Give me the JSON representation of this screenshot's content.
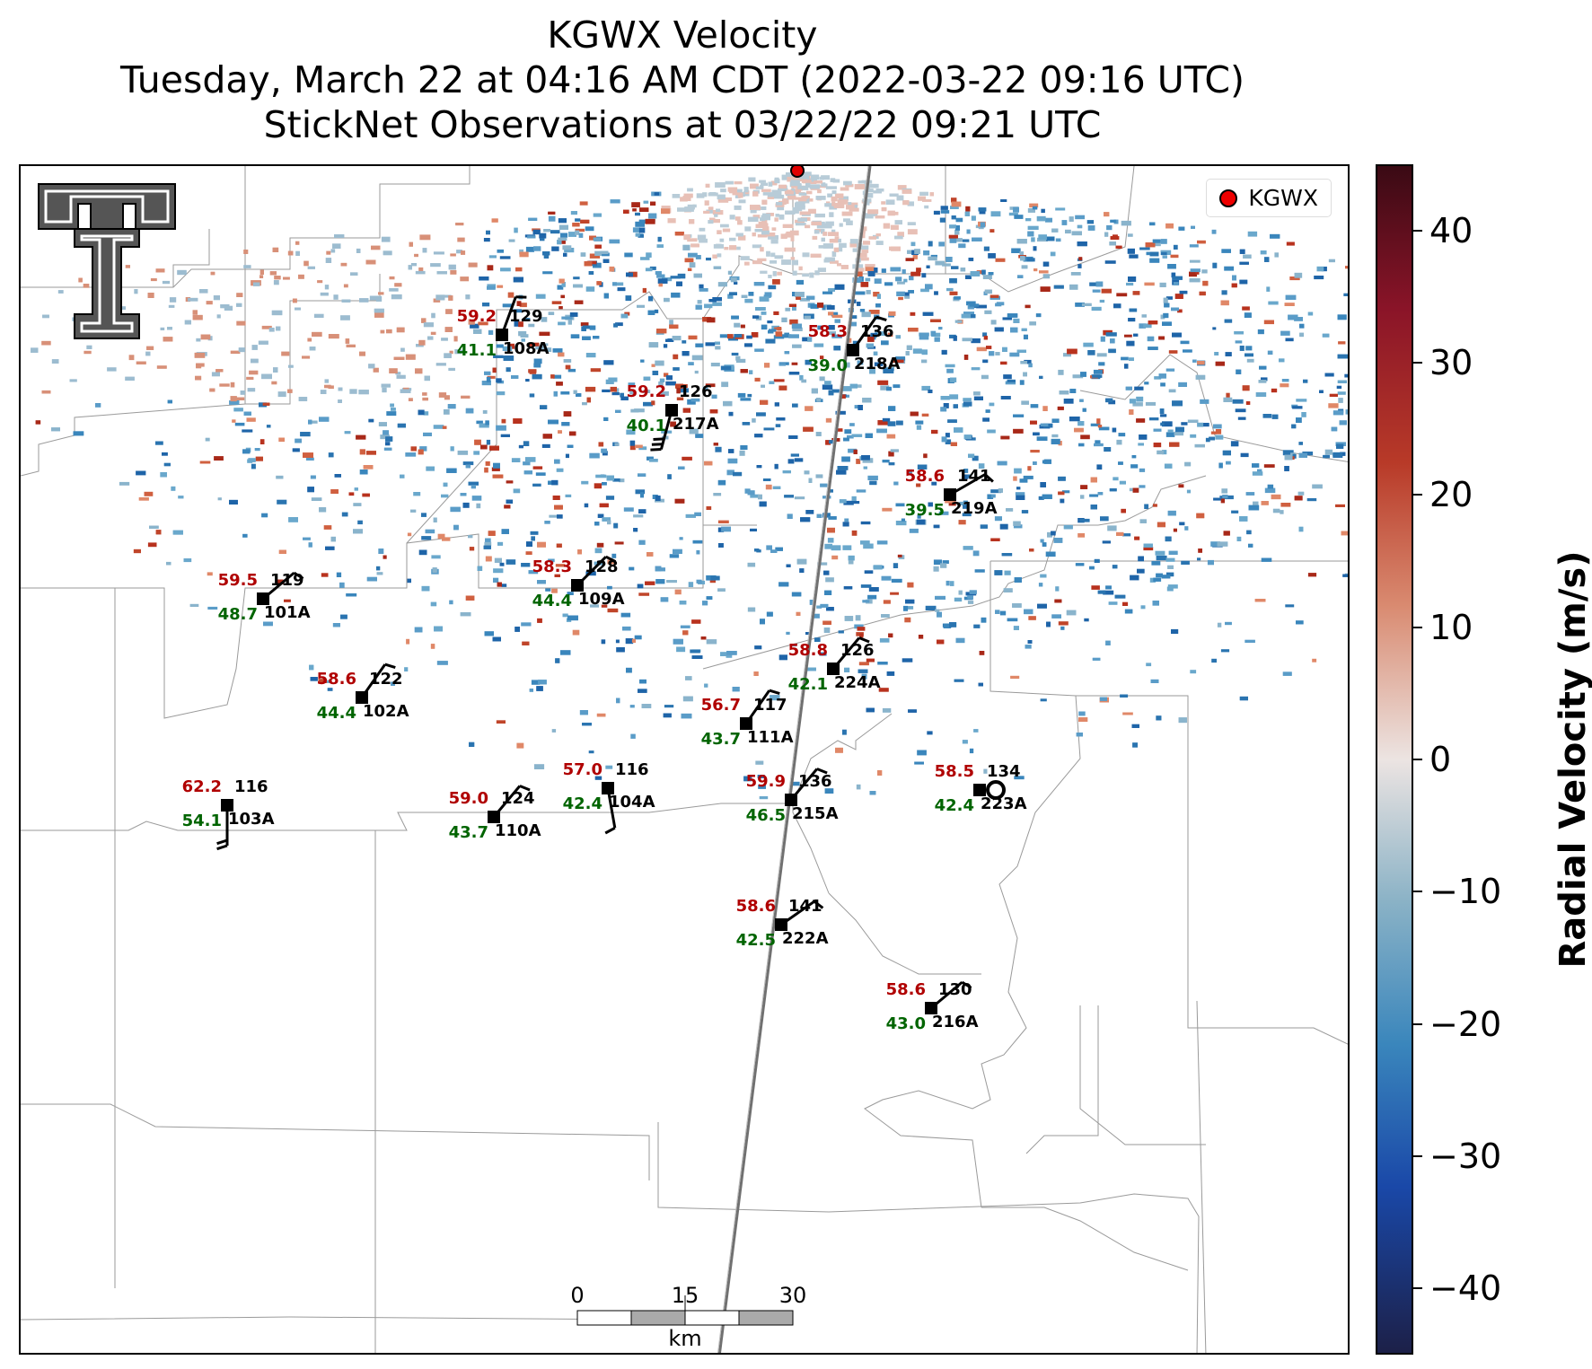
{
  "title": {
    "line1": "KGWX Velocity",
    "line2": "Tuesday, March 22 at 04:16 AM CDT (2022-03-22 09:16 UTC)",
    "line3": "StickNet Observations at 03/22/22 09:21 UTC"
  },
  "legend": {
    "label": "KGWX",
    "marker_color": "#e00000"
  },
  "colorbar": {
    "label": "Radial Velocity (m/s)",
    "range": [
      -45,
      45
    ],
    "ticks": [
      "40",
      "30",
      "20",
      "10",
      "0",
      "−10",
      "−20",
      "−30",
      "−40"
    ]
  },
  "scale_bar": {
    "ticks": [
      "0",
      "15",
      "30"
    ],
    "unit": "km"
  },
  "colors": {
    "temperature": "#b00000",
    "dewpoint": "#006400",
    "station": "#000000",
    "positive_velocity": "#c0452a",
    "negative_velocity": "#3a86bc"
  },
  "stations": [
    {
      "id": "108A",
      "temp": "59.2",
      "dew": "41.1",
      "val": "129"
    },
    {
      "id": "218A",
      "temp": "58.3",
      "dew": "39.0",
      "val": "136"
    },
    {
      "id": "217A",
      "temp": "59.2",
      "dew": "40.1",
      "val": "126"
    },
    {
      "id": "219A",
      "temp": "58.6",
      "dew": "39.5",
      "val": "141"
    },
    {
      "id": "101A",
      "temp": "59.5",
      "dew": "48.7",
      "val": "119"
    },
    {
      "id": "109A",
      "temp": "58.3",
      "dew": "44.4",
      "val": "128"
    },
    {
      "id": "224A",
      "temp": "58.8",
      "dew": "42.1",
      "val": "126"
    },
    {
      "id": "102A",
      "temp": "58.6",
      "dew": "44.4",
      "val": "122"
    },
    {
      "id": "111A",
      "temp": "56.7",
      "dew": "43.7",
      "val": "117"
    },
    {
      "id": "104A",
      "temp": "57.0",
      "dew": "42.4",
      "val": "116"
    },
    {
      "id": "103A",
      "temp": "62.2",
      "dew": "54.1",
      "val": "116"
    },
    {
      "id": "110A",
      "temp": "59.0",
      "dew": "43.7",
      "val": "124"
    },
    {
      "id": "215A",
      "temp": "59.9",
      "dew": "46.5",
      "val": "136"
    },
    {
      "id": "223A",
      "temp": "58.5",
      "dew": "42.4",
      "val": "134"
    },
    {
      "id": "222A",
      "temp": "58.6",
      "dew": "42.5",
      "val": "141"
    },
    {
      "id": "216A",
      "temp": "58.6",
      "dew": "43.0",
      "val": "130"
    }
  ]
}
